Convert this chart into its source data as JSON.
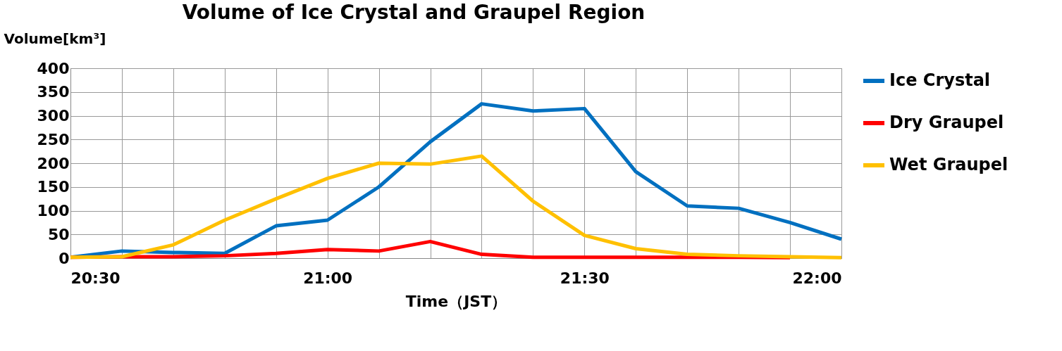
{
  "chart_data": {
    "type": "line",
    "title": "Volume of Ice Crystal and Graupel Region",
    "ylabel": "Volume[km³]",
    "xlabel": "Time（JST）",
    "x": [
      20.5,
      20.6,
      20.7,
      20.8,
      20.9,
      21.0,
      21.1,
      21.2,
      21.3,
      21.4,
      21.5,
      21.6,
      21.7,
      21.8,
      21.9,
      22.0
    ],
    "series": [
      {
        "name": "Ice Crystal",
        "color": "#0070c0",
        "values": [
          2,
          15,
          12,
          10,
          68,
          80,
          150,
          245,
          325,
          310,
          315,
          182,
          110,
          105,
          75,
          40
        ]
      },
      {
        "name": "Dry Graupel",
        "color": "#ff0000",
        "values": [
          2,
          3,
          3,
          5,
          10,
          18,
          15,
          35,
          8,
          2,
          2,
          2,
          2,
          2,
          1,
          null
        ]
      },
      {
        "name": "Wet Graupel",
        "color": "#ffc000",
        "values": [
          2,
          3,
          28,
          80,
          125,
          168,
          200,
          198,
          215,
          120,
          48,
          20,
          8,
          5,
          3,
          1
        ]
      }
    ],
    "xlim": [
      20.5,
      22.0
    ],
    "xticks": [
      {
        "value": 20.5,
        "label": "20:30"
      },
      {
        "value": 20.6,
        "label": null
      },
      {
        "value": 20.7,
        "label": null
      },
      {
        "value": 20.8,
        "label": null
      },
      {
        "value": 20.9,
        "label": null
      },
      {
        "value": 21.0,
        "label": "21:00"
      },
      {
        "value": 21.1,
        "label": null
      },
      {
        "value": 21.2,
        "label": null
      },
      {
        "value": 21.3,
        "label": null
      },
      {
        "value": 21.4,
        "label": null
      },
      {
        "value": 21.5,
        "label": "21:30"
      },
      {
        "value": 21.6,
        "label": null
      },
      {
        "value": 21.7,
        "label": null
      },
      {
        "value": 21.8,
        "label": null
      },
      {
        "value": 21.9,
        "label": null
      },
      {
        "value": 22.0,
        "label": "22:00"
      }
    ],
    "ylim": [
      0,
      400
    ],
    "yticks": [
      0,
      50,
      100,
      150,
      200,
      250,
      300,
      350,
      400
    ],
    "grid": true,
    "legend": "right",
    "marker": "none",
    "line_style": "solid"
  }
}
